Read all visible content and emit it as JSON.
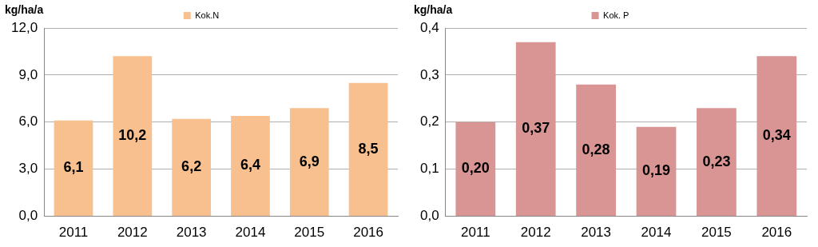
{
  "chart_data": [
    {
      "type": "bar",
      "y_label": "kg/ha/a",
      "categories": [
        "2011",
        "2012",
        "2013",
        "2014",
        "2015",
        "2016"
      ],
      "series": [
        {
          "name": "Kok.N",
          "color": "#f9c08f",
          "values": [
            6.1,
            10.2,
            6.2,
            6.4,
            6.9,
            8.5
          ],
          "value_labels": [
            "6,1",
            "10,2",
            "6,2",
            "6,4",
            "6,9",
            "8,5"
          ]
        }
      ],
      "ylim": [
        0,
        12
      ],
      "yticks": [
        {
          "value": 0,
          "label": "0,0"
        },
        {
          "value": 3,
          "label": "3,0"
        },
        {
          "value": 6,
          "label": "6,0"
        },
        {
          "value": 9,
          "label": "9,0"
        },
        {
          "value": 12,
          "label": "12,0"
        }
      ],
      "grid": true,
      "legend": "top",
      "data_labels": true
    },
    {
      "type": "bar",
      "y_label": "kg/ha/a",
      "categories": [
        "2011",
        "2012",
        "2013",
        "2014",
        "2015",
        "2016"
      ],
      "series": [
        {
          "name": "Kok. P",
          "color": "#d99594",
          "values": [
            0.2,
            0.37,
            0.28,
            0.19,
            0.23,
            0.34
          ],
          "value_labels": [
            "0,20",
            "0,37",
            "0,28",
            "0,19",
            "0,23",
            "0,34"
          ]
        }
      ],
      "ylim": [
        0,
        0.4
      ],
      "yticks": [
        {
          "value": 0,
          "label": "0,0"
        },
        {
          "value": 0.1,
          "label": "0,1"
        },
        {
          "value": 0.2,
          "label": "0,2"
        },
        {
          "value": 0.3,
          "label": "0,3"
        },
        {
          "value": 0.4,
          "label": "0,4"
        }
      ],
      "grid": true,
      "legend": "top",
      "data_labels": true
    }
  ]
}
